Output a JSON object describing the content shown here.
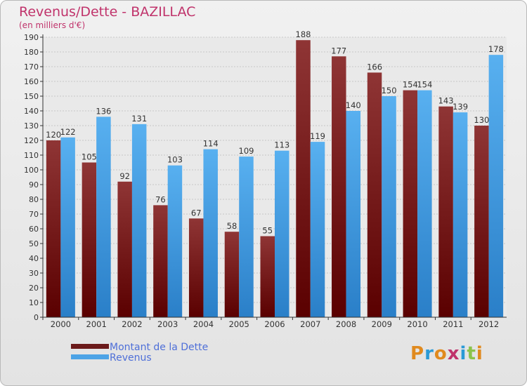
{
  "title": "Revenus/Dette - BAZILLAC",
  "subtitle": "(en milliers d'€)",
  "logo": "Proxiti",
  "colors": {
    "title": "#c0336b",
    "debt": "#6b1a1a",
    "revenue": "#4ca3e6",
    "legend_text": "#4e6fd8"
  },
  "chart_data": {
    "type": "bar",
    "categories": [
      "2000",
      "2001",
      "2002",
      "2003",
      "2004",
      "2005",
      "2006",
      "2007",
      "2008",
      "2009",
      "2010",
      "2011",
      "2012"
    ],
    "series": [
      {
        "name": "Montant de la Dette",
        "values": [
          120,
          105,
          92,
          76,
          67,
          58,
          55,
          188,
          177,
          166,
          154,
          143,
          130
        ]
      },
      {
        "name": "Revenus",
        "values": [
          122,
          136,
          131,
          103,
          114,
          109,
          113,
          119,
          140,
          150,
          154,
          139,
          178
        ]
      }
    ],
    "ylim": [
      0,
      190
    ],
    "ytick_step": 10,
    "grid": true,
    "legend": "bottom-left"
  }
}
